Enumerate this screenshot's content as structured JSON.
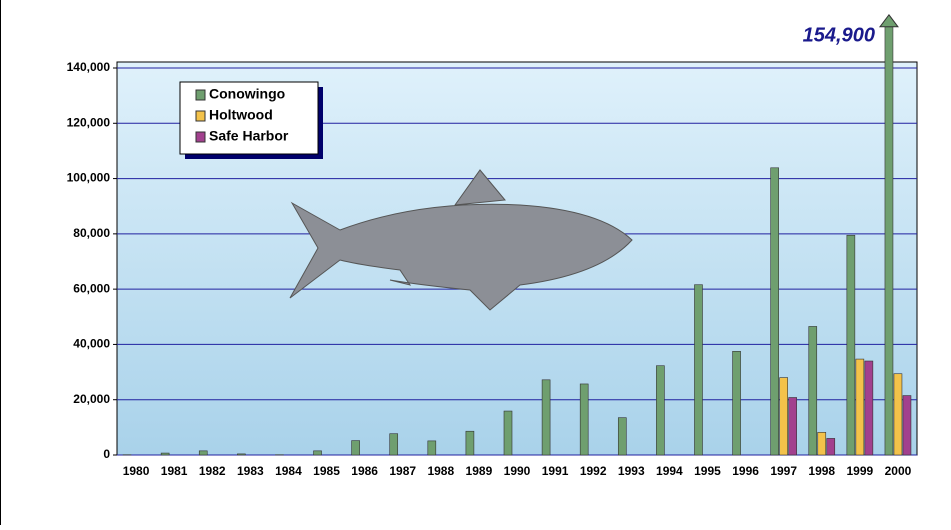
{
  "chart_data": {
    "type": "bar",
    "categories": [
      "1980",
      "1981",
      "1982",
      "1983",
      "1984",
      "1985",
      "1986",
      "1987",
      "1988",
      "1989",
      "1990",
      "1991",
      "1992",
      "1993",
      "1994",
      "1995",
      "1996",
      "1997",
      "1998",
      "1999",
      "2000"
    ],
    "series": [
      {
        "name": "Conowingo",
        "color": "#6f9f6f",
        "values": [
          100,
          700,
          1500,
          400,
          100,
          1500,
          5200,
          7700,
          5100,
          8600,
          15900,
          27200,
          25700,
          13500,
          32300,
          61600,
          37500,
          103900,
          46500,
          79500,
          154900
        ],
        "value_labels": [
          null,
          null,
          null,
          null,
          null,
          null,
          null,
          null,
          null,
          null,
          null,
          null,
          null,
          null,
          null,
          null,
          null,
          null,
          null,
          null,
          "154,900"
        ]
      },
      {
        "name": "Holtwood",
        "color": "#f3c24a",
        "values": [
          null,
          null,
          null,
          null,
          null,
          null,
          null,
          null,
          null,
          null,
          null,
          null,
          null,
          null,
          null,
          null,
          null,
          28000,
          8200,
          34700,
          29400
        ]
      },
      {
        "name": "Safe Harbor",
        "color": "#a2408e",
        "values": [
          null,
          null,
          null,
          null,
          null,
          null,
          null,
          null,
          null,
          null,
          null,
          null,
          null,
          null,
          null,
          null,
          null,
          20800,
          6000,
          34000,
          21500
        ]
      }
    ],
    "ylim": [
      0,
      140000
    ],
    "yticks": [
      0,
      {
        "value": 20000,
        "label": "20,000"
      },
      {
        "value": 40000,
        "label": "40,000"
      },
      {
        "value": 60000,
        "label": "60,000"
      },
      {
        "value": 80000,
        "label": "80,000"
      },
      {
        "value": 100000,
        "label": "100,000"
      },
      {
        "value": 120000,
        "label": "120,000"
      },
      {
        "value": 140000,
        "label": "140,000"
      }
    ],
    "grid": true
  }
}
